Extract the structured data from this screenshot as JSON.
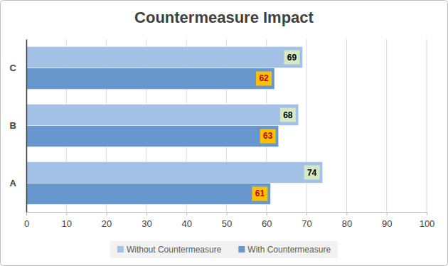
{
  "chart_data": {
    "type": "bar",
    "title": "Countermeasure Impact",
    "orientation": "horizontal",
    "categories": [
      "A",
      "B",
      "C"
    ],
    "series": [
      {
        "name": "Without Countermeasure",
        "color": "#a3c0e6",
        "values": [
          74,
          68,
          69
        ]
      },
      {
        "name": "With Countermeasure",
        "color": "#6897cd",
        "values": [
          61,
          63,
          62
        ]
      }
    ],
    "xlim": [
      0,
      100
    ],
    "xticks": [
      0,
      10,
      20,
      30,
      40,
      50,
      60,
      70,
      80,
      90,
      100
    ],
    "grid": true,
    "legend": "bottom",
    "data_labels": true
  }
}
